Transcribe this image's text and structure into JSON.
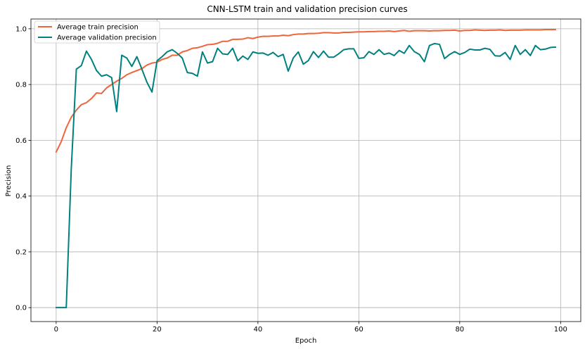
{
  "chart_data": {
    "type": "line",
    "title": "CNN-LSTM train and validation precision curves",
    "xlabel": "Epoch",
    "ylabel": "Precision",
    "xlim": [
      -5,
      104
    ],
    "ylim": [
      -0.05,
      1.035
    ],
    "xticks": [
      0,
      20,
      40,
      60,
      80,
      100
    ],
    "yticks": [
      0.0,
      0.2,
      0.4,
      0.6,
      0.8,
      1.0
    ],
    "xtick_labels": [
      "0",
      "20",
      "40",
      "60",
      "80",
      "100"
    ],
    "ytick_labels": [
      "0.0",
      "0.2",
      "0.4",
      "0.6",
      "0.8",
      "1.0"
    ],
    "grid": true,
    "legend_position": "top-left",
    "series": [
      {
        "name": "Average train precision",
        "color": "#f0643c",
        "x": [
          0,
          1,
          2,
          3,
          4,
          5,
          6,
          7,
          8,
          9,
          10,
          11,
          12,
          13,
          14,
          15,
          16,
          17,
          18,
          19,
          20,
          21,
          22,
          23,
          24,
          25,
          26,
          27,
          28,
          29,
          30,
          31,
          32,
          33,
          34,
          35,
          36,
          37,
          38,
          39,
          40,
          41,
          42,
          43,
          44,
          45,
          46,
          47,
          48,
          49,
          50,
          51,
          52,
          53,
          54,
          55,
          56,
          57,
          58,
          59,
          60,
          61,
          62,
          63,
          64,
          65,
          66,
          67,
          68,
          69,
          70,
          71,
          72,
          73,
          74,
          75,
          76,
          77,
          78,
          79,
          80,
          81,
          82,
          83,
          84,
          85,
          86,
          87,
          88,
          89,
          90,
          91,
          92,
          93,
          94,
          95,
          96,
          97,
          98,
          99
        ],
        "values": [
          0.558,
          0.595,
          0.645,
          0.683,
          0.708,
          0.728,
          0.735,
          0.75,
          0.77,
          0.768,
          0.788,
          0.8,
          0.812,
          0.822,
          0.835,
          0.843,
          0.85,
          0.857,
          0.87,
          0.877,
          0.88,
          0.89,
          0.895,
          0.905,
          0.905,
          0.917,
          0.922,
          0.93,
          0.932,
          0.937,
          0.943,
          0.944,
          0.948,
          0.955,
          0.955,
          0.962,
          0.962,
          0.963,
          0.968,
          0.965,
          0.97,
          0.973,
          0.973,
          0.974,
          0.974,
          0.977,
          0.975,
          0.979,
          0.981,
          0.981,
          0.983,
          0.983,
          0.984,
          0.986,
          0.986,
          0.985,
          0.985,
          0.987,
          0.987,
          0.988,
          0.989,
          0.989,
          0.99,
          0.99,
          0.991,
          0.991,
          0.992,
          0.99,
          0.992,
          0.994,
          0.991,
          0.993,
          0.993,
          0.993,
          0.992,
          0.993,
          0.993,
          0.994,
          0.994,
          0.995,
          0.992,
          0.994,
          0.994,
          0.996,
          0.995,
          0.994,
          0.995,
          0.995,
          0.996,
          0.994,
          0.995,
          0.995,
          0.995,
          0.996,
          0.996,
          0.996,
          0.996,
          0.997,
          0.997,
          0.997
        ]
      },
      {
        "name": "Average validation precision",
        "color": "#008080",
        "x": [
          0,
          1,
          2,
          3,
          4,
          5,
          6,
          7,
          8,
          9,
          10,
          11,
          12,
          13,
          14,
          15,
          16,
          17,
          18,
          19,
          20,
          21,
          22,
          23,
          24,
          25,
          26,
          27,
          28,
          29,
          30,
          31,
          32,
          33,
          34,
          35,
          36,
          37,
          38,
          39,
          40,
          41,
          42,
          43,
          44,
          45,
          46,
          47,
          48,
          49,
          50,
          51,
          52,
          53,
          54,
          55,
          56,
          57,
          58,
          59,
          60,
          61,
          62,
          63,
          64,
          65,
          66,
          67,
          68,
          69,
          70,
          71,
          72,
          73,
          74,
          75,
          76,
          77,
          78,
          79,
          80,
          81,
          82,
          83,
          84,
          85,
          86,
          87,
          88,
          89,
          90,
          91,
          92,
          93,
          94,
          95,
          96,
          97,
          98,
          99
        ],
        "values": [
          0.0,
          0.0,
          0.0,
          0.5,
          0.855,
          0.868,
          0.92,
          0.89,
          0.85,
          0.83,
          0.835,
          0.825,
          0.703,
          0.905,
          0.895,
          0.865,
          0.9,
          0.855,
          0.808,
          0.773,
          0.885,
          0.9,
          0.917,
          0.925,
          0.912,
          0.895,
          0.843,
          0.84,
          0.83,
          0.917,
          0.877,
          0.882,
          0.93,
          0.91,
          0.908,
          0.93,
          0.885,
          0.902,
          0.89,
          0.917,
          0.912,
          0.913,
          0.905,
          0.915,
          0.9,
          0.908,
          0.848,
          0.895,
          0.917,
          0.873,
          0.886,
          0.918,
          0.897,
          0.92,
          0.898,
          0.898,
          0.91,
          0.925,
          0.928,
          0.928,
          0.894,
          0.896,
          0.918,
          0.908,
          0.925,
          0.908,
          0.913,
          0.904,
          0.922,
          0.912,
          0.94,
          0.918,
          0.908,
          0.882,
          0.94,
          0.947,
          0.944,
          0.893,
          0.908,
          0.918,
          0.908,
          0.915,
          0.927,
          0.924,
          0.924,
          0.93,
          0.926,
          0.903,
          0.902,
          0.915,
          0.89,
          0.94,
          0.908,
          0.925,
          0.904,
          0.94,
          0.925,
          0.927,
          0.933,
          0.934
        ]
      }
    ]
  }
}
